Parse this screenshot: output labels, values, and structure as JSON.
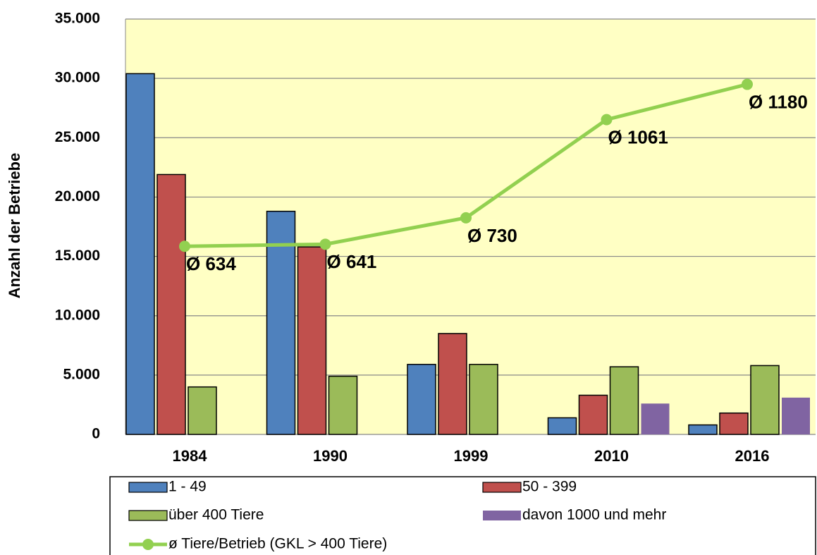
{
  "chart_data": {
    "type": "bar",
    "y_label": "Anzahl der Betriebe",
    "categories": [
      "1984",
      "1990",
      "1999",
      "2010",
      "2016"
    ],
    "series": [
      {
        "name": "1 - 49",
        "color": "#4f81bd",
        "values": [
          30400,
          18800,
          5900,
          1400,
          800
        ]
      },
      {
        "name": "50 - 399",
        "color": "#c0504d",
        "values": [
          21900,
          15800,
          8500,
          3300,
          1800
        ]
      },
      {
        "name": "über 400 Tiere",
        "color": "#9bbb59",
        "values": [
          4000,
          4900,
          5900,
          5700,
          5800
        ]
      },
      {
        "name": "davon 1000 und mehr",
        "color": "#8064a2",
        "values": [
          null,
          null,
          null,
          2600,
          3100
        ]
      },
      {
        "name": "ø Tiere/Betrieb (GKL > 400 Tiere)",
        "color": "#92d050",
        "type": "line",
        "axis": "y2",
        "values": [
          634,
          641,
          730,
          1061,
          1180
        ],
        "value_labels": [
          "Ø 634",
          "Ø 641",
          "Ø 730",
          "Ø 1061",
          "Ø 1180"
        ]
      }
    ],
    "ylim": [
      0,
      35000
    ],
    "yticks": [
      {
        "value": 0,
        "label": "0"
      },
      {
        "value": 5000,
        "label": "5.000"
      },
      {
        "value": 10000,
        "label": "10.000"
      },
      {
        "value": 15000,
        "label": "15.000"
      },
      {
        "value": 20000,
        "label": "20.000"
      },
      {
        "value": 25000,
        "label": "25.000"
      },
      {
        "value": 30000,
        "label": "30.000"
      },
      {
        "value": 35000,
        "label": "35.000"
      }
    ],
    "y2lim": [
      0,
      1400
    ],
    "grid": true,
    "plot_background": "#ffffc4"
  }
}
